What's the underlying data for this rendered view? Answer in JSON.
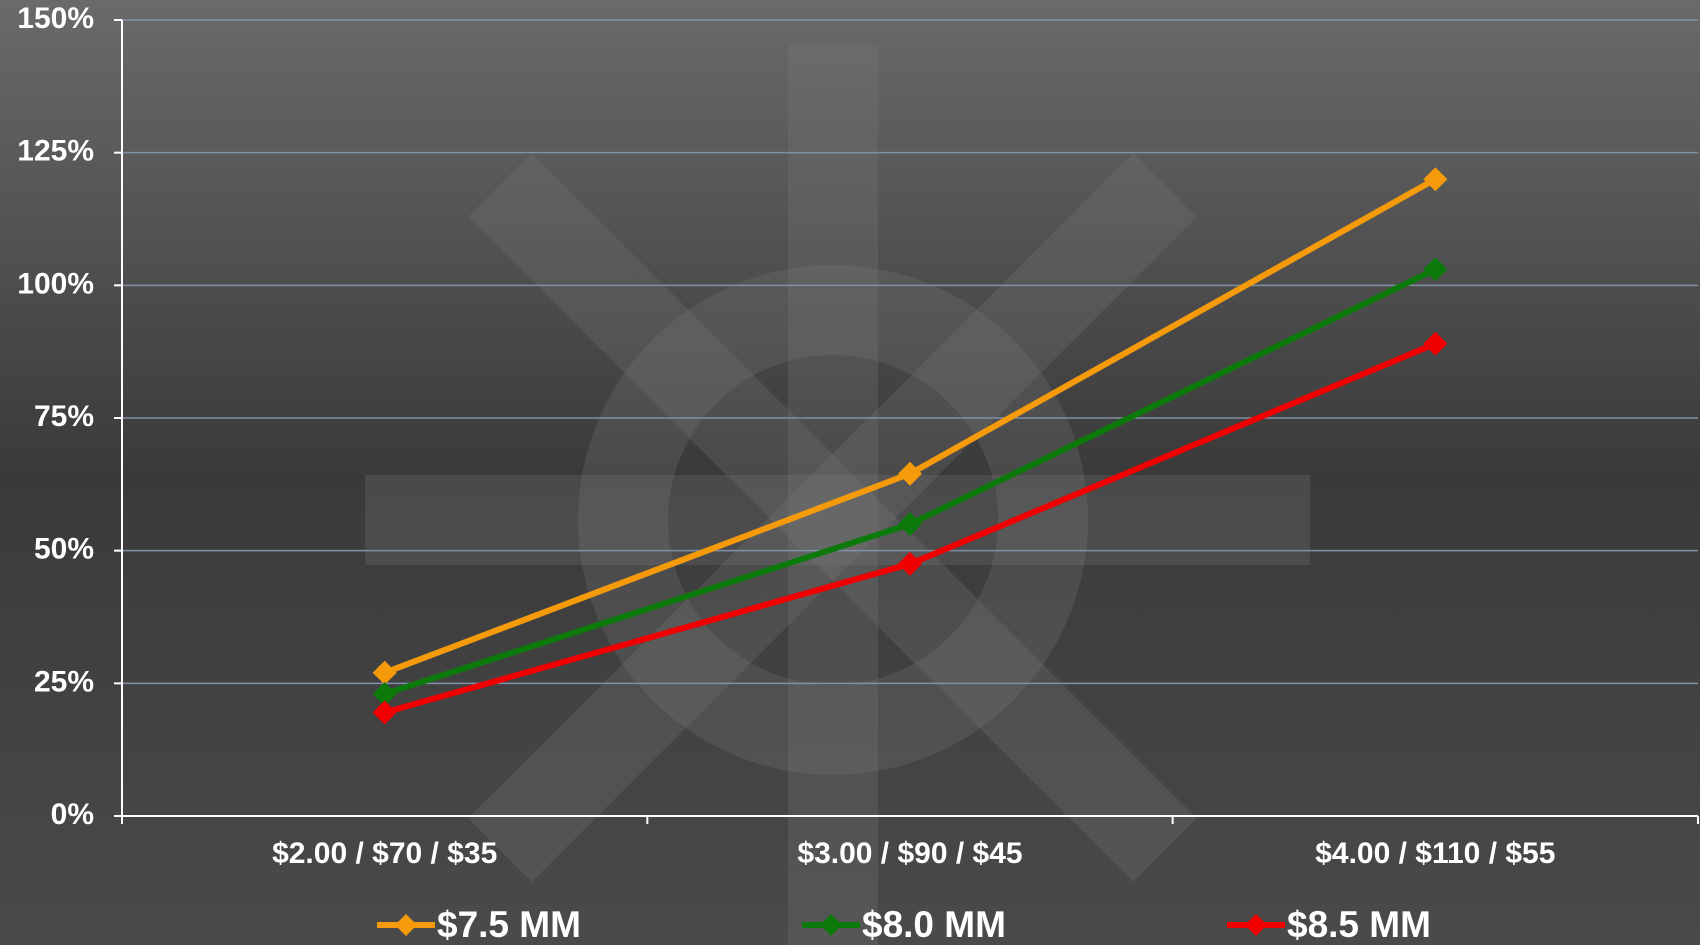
{
  "chart_data": {
    "type": "line",
    "categories": [
      "$2.00 / $70 / $35",
      "$3.00 / $90 / $45",
      "$4.00 / $110 / $55"
    ],
    "series": [
      {
        "name": "$7.5 MM",
        "color": "#f59b0b",
        "values": [
          27,
          64.5,
          120
        ]
      },
      {
        "name": "$8.0 MM",
        "color": "#0b7a0b",
        "values": [
          23,
          55,
          103
        ]
      },
      {
        "name": "$8.5 MM",
        "color": "#f00000",
        "values": [
          19.5,
          47.5,
          89
        ]
      }
    ],
    "ylim": [
      0,
      150
    ],
    "yticks": [
      {
        "value": 0,
        "label": "0%"
      },
      {
        "value": 25,
        "label": "25%"
      },
      {
        "value": 50,
        "label": "50%"
      },
      {
        "value": 75,
        "label": "75%"
      },
      {
        "value": 100,
        "label": "100%"
      },
      {
        "value": 125,
        "label": "125%"
      },
      {
        "value": 150,
        "label": "150%"
      }
    ],
    "grid": true,
    "legend": "bottom"
  }
}
